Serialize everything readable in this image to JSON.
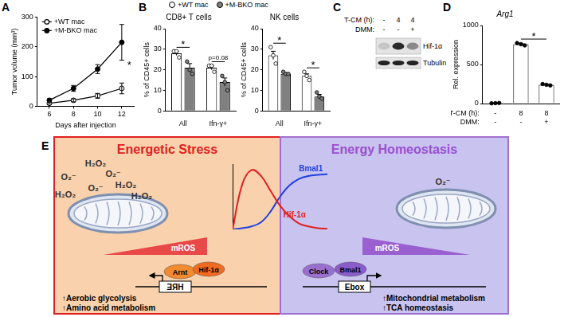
{
  "chart_data": [
    {
      "panel": "A",
      "type": "line",
      "x_label": "Days after injection",
      "y_label": "Tumor volume (mm³)",
      "x": [
        6,
        8,
        10,
        12
      ],
      "xlim": [
        5,
        13
      ],
      "xticks": [
        6,
        8,
        10,
        12
      ],
      "ylim": [
        0,
        300
      ],
      "yticks": [
        0,
        100,
        200,
        300
      ],
      "grid": false,
      "legend": "top-left",
      "series": [
        {
          "name": "+WT mac",
          "color": "#000000",
          "marker": "open_circle",
          "values": [
            10,
            20,
            35,
            60
          ],
          "errors": [
            3,
            5,
            8,
            18
          ]
        },
        {
          "name": "+M-BKO mac",
          "color": "#000000",
          "marker": "filled_circle",
          "values": [
            20,
            60,
            125,
            215
          ],
          "errors": [
            5,
            10,
            15,
            60
          ]
        }
      ],
      "annotations": [
        "*"
      ]
    },
    {
      "panel": "B",
      "type": "bar",
      "title": "CD8+ T cells",
      "y_label": "% of CD45+ cells",
      "categories": [
        "All",
        "Ifn-γ+"
      ],
      "ylim": [
        0,
        40
      ],
      "yticks": [
        0,
        10,
        20,
        30,
        40
      ],
      "grid": false,
      "legend": "top",
      "series": [
        {
          "name": "+WT mac",
          "color": "#ffffff",
          "marker": "open_circle",
          "values": [
            28,
            21
          ],
          "errors": [
            1,
            1
          ],
          "points": [
            [
              29,
              29,
              26
            ],
            [
              22,
              22,
              19
            ]
          ]
        },
        {
          "name": "+M-BKO mac",
          "color": "#808080",
          "marker": "filled_circle",
          "values": [
            21,
            14
          ],
          "errors": [
            2,
            2
          ],
          "points": [
            [
              24,
              20,
              18
            ],
            [
              17,
              14,
              10
            ]
          ]
        }
      ],
      "annotations": [
        "*",
        "p=0.08"
      ]
    },
    {
      "type": "bar",
      "title": "NK cells",
      "y_label": "% of CD45+ cells",
      "categories": [
        "All",
        "Ifn-γ+"
      ],
      "ylim": [
        0,
        40
      ],
      "yticks": [
        0,
        10,
        20,
        30,
        40
      ],
      "grid": false,
      "series": [
        {
          "name": "+WT mac",
          "color": "#ffffff",
          "marker": "open_circle",
          "values": [
            27,
            17
          ],
          "errors": [
            2,
            1
          ],
          "points": [
            [
              31,
              27,
              23
            ],
            [
              19,
              17,
              15
            ]
          ]
        },
        {
          "name": "+M-BKO mac",
          "color": "#808080",
          "marker": "filled_circle",
          "values": [
            18,
            7
          ],
          "errors": [
            0.5,
            1
          ],
          "points": [
            [
              19,
              18,
              18
            ],
            [
              9,
              7,
              6
            ]
          ]
        }
      ],
      "annotations": [
        "*",
        "*"
      ]
    },
    {
      "panel": "D",
      "type": "bar",
      "title": "Arg1",
      "y_label": "Rel. expression",
      "categories": [
        null,
        null,
        null
      ],
      "ylim": [
        0,
        1000
      ],
      "yticks": [
        0,
        500,
        1000
      ],
      "grid": false,
      "values": [
        5,
        760,
        240
      ],
      "errors": [
        2,
        12,
        8
      ],
      "points": [
        [
          3,
          5,
          7
        ],
        [
          775,
          760,
          745
        ],
        [
          250,
          240,
          232
        ]
      ],
      "color": "#ffffff",
      "marker": "filled_circle",
      "conditions": [
        {
          "label": "T-CM (h):",
          "values": [
            "-",
            "8",
            "8"
          ]
        },
        {
          "label": "DMM:",
          "values": [
            "-",
            "-",
            "+"
          ]
        }
      ],
      "annotations": [
        "*"
      ]
    },
    {
      "type": "line",
      "x": [
        0,
        1,
        2,
        3,
        4,
        5,
        6,
        7,
        8,
        9,
        10
      ],
      "xlim": [
        0,
        10
      ],
      "ylim": [
        0,
        1.1
      ],
      "tick_labels": false,
      "grid": false,
      "series": [
        {
          "name": "Hif-1α",
          "color": "#e02020",
          "values": [
            0,
            0.75,
            1,
            0.9,
            0.65,
            0.4,
            0.22,
            0.1,
            0.05,
            0.02,
            0.01
          ]
        },
        {
          "name": "Bmal1",
          "color": "#2040e0",
          "values": [
            0,
            0.02,
            0.05,
            0.12,
            0.3,
            0.55,
            0.74,
            0.85,
            0.9,
            0.92,
            0.93
          ]
        }
      ]
    }
  ],
  "blot": {
    "panel": "C",
    "rows": [
      {
        "label": "T-CM (h):",
        "values": [
          "-",
          "4",
          "4"
        ]
      },
      {
        "label": "DMM:",
        "values": [
          "-",
          "-",
          "+"
        ]
      }
    ],
    "bands": [
      "Hif-1α",
      "Tubulin"
    ]
  },
  "diagram": {
    "panel": "E",
    "left": {
      "title": "Energetic Stress",
      "ros": [
        "H₂O₂",
        "O₂⁻",
        "O₂⁻",
        "H₂O₂",
        "O₂⁻",
        "H₂O₂",
        "H₂O₂"
      ],
      "ros_label": "mROS",
      "factors": [
        "Arnt",
        "Hif-1α"
      ],
      "element": "HRE",
      "effects": [
        "↑Aerobic glycolysis",
        "↑Amino acid metabolism"
      ]
    },
    "right": {
      "title": "Energy Homeostasis",
      "ros": [
        "O₂⁻"
      ],
      "ros_label": "mROS",
      "factors": [
        "Clock",
        "Bmal1"
      ],
      "element": "Ebox",
      "effects": [
        "↑Mitochondrial metabolism",
        "↑TCA homeostasis"
      ]
    }
  }
}
